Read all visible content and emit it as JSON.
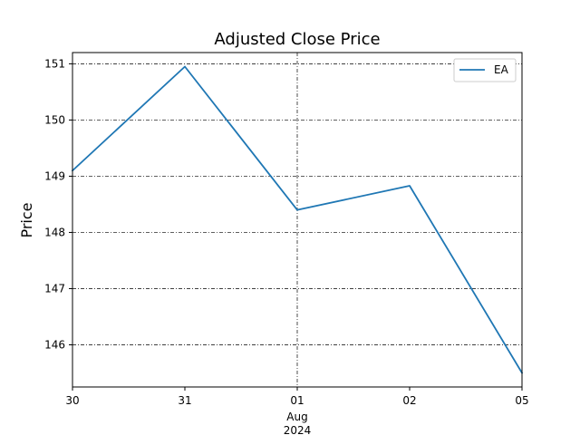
{
  "chart_data": {
    "type": "line",
    "title": "Adjusted Close Price",
    "xlabel": "",
    "ylabel": "Price",
    "x": [
      "2024-07-30",
      "2024-07-31",
      "2024-08-01",
      "2024-08-02",
      "2024-08-05"
    ],
    "x_tick_labels": [
      "30",
      "31",
      "01",
      "02",
      "05"
    ],
    "x_secondary_label": [
      "Aug",
      "2024"
    ],
    "series": [
      {
        "name": "EA",
        "values": [
          149.1,
          150.95,
          148.4,
          148.83,
          145.5
        ],
        "color": "#1f77b4"
      }
    ],
    "ylim": [
      145.25,
      151.2
    ],
    "yticks": [
      146,
      147,
      148,
      149,
      150,
      151
    ],
    "grid": "dash-dot, black",
    "legend": "top-right"
  }
}
